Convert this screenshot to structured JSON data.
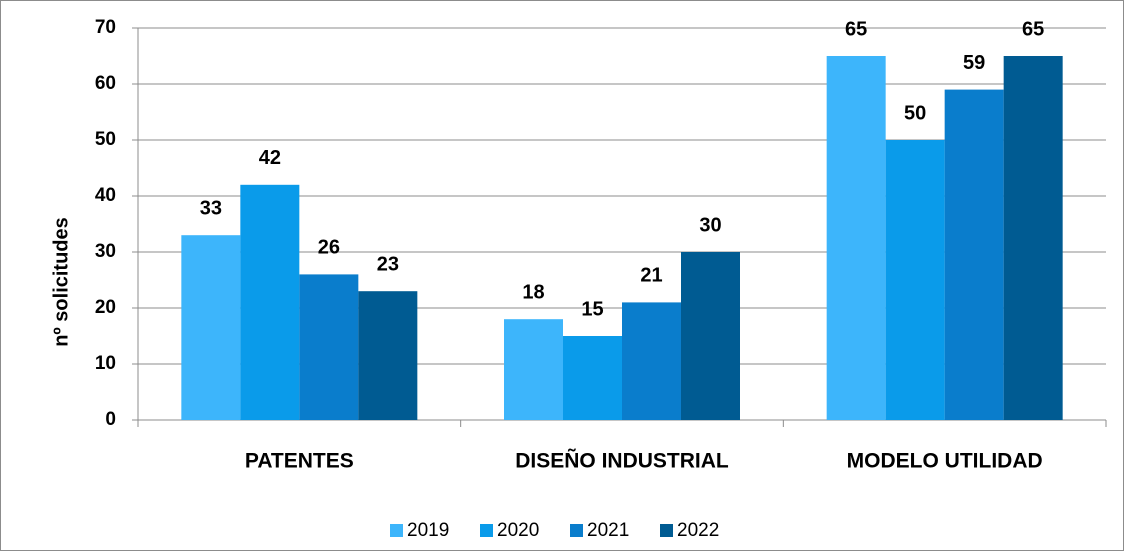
{
  "chart_data": {
    "type": "bar",
    "y_label": "nº solicitudes",
    "categories": [
      "PATENTES",
      "DISEÑO INDUSTRIAL",
      "MODELO UTILIDAD"
    ],
    "series": [
      {
        "name": "2019",
        "color": "#3db5fb",
        "values": [
          33,
          18,
          65
        ]
      },
      {
        "name": "2020",
        "color": "#0a9bea",
        "values": [
          42,
          15,
          50
        ]
      },
      {
        "name": "2021",
        "color": "#0a7dcc",
        "values": [
          26,
          21,
          59
        ]
      },
      {
        "name": "2022",
        "color": "#005b92",
        "values": [
          23,
          30,
          65
        ]
      }
    ],
    "ylim": [
      0,
      70
    ],
    "yticks": [
      0,
      10,
      20,
      30,
      40,
      50,
      60,
      70
    ],
    "grid": true,
    "legend": "bottom"
  }
}
